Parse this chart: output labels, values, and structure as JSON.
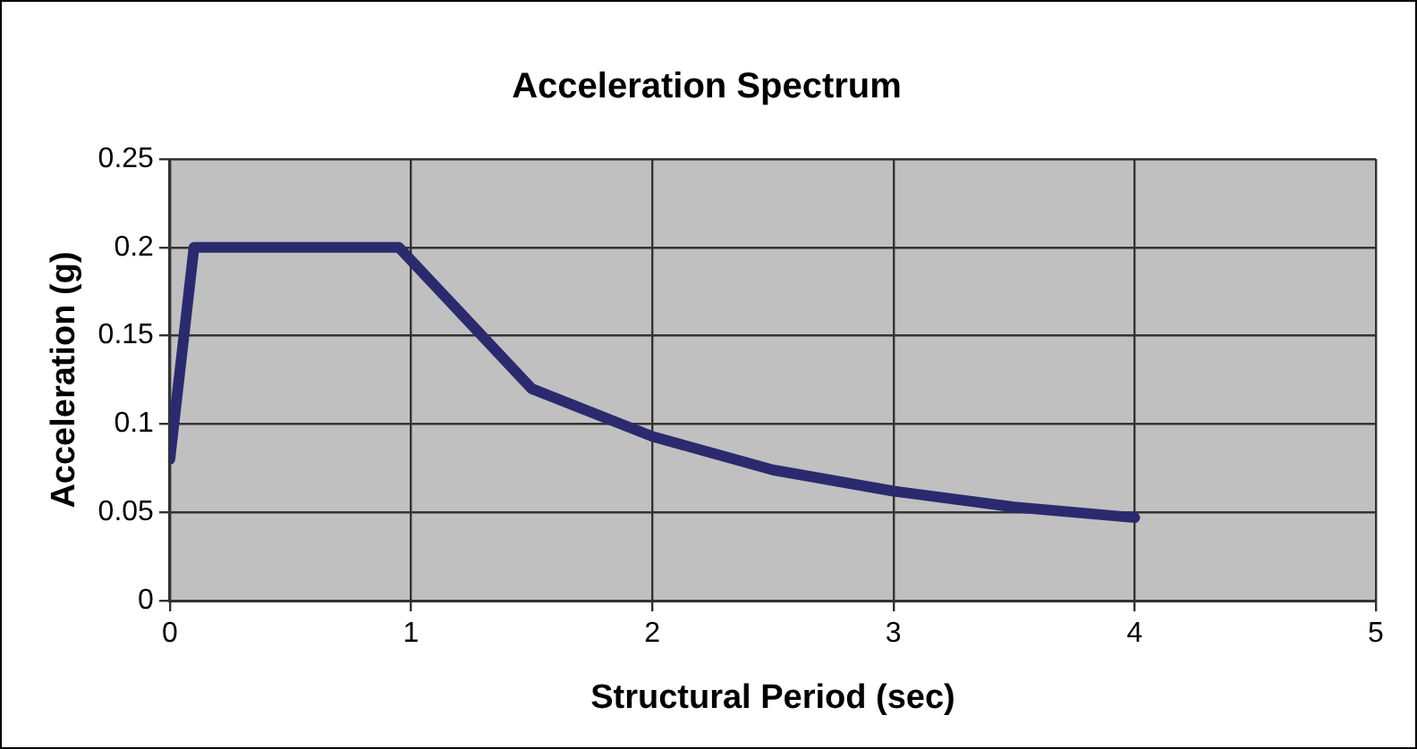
{
  "chart_data": {
    "type": "line",
    "title": "Acceleration Spectrum",
    "xlabel": "Structural Period (sec)",
    "ylabel": "Acceleration (g)",
    "x": [
      0,
      0.1,
      0.95,
      1.5,
      2,
      2.5,
      3,
      3.5,
      4
    ],
    "series": [
      {
        "color": "#2b2a6e",
        "values": [
          0.08,
          0.2,
          0.2,
          0.12,
          0.093,
          0.074,
          0.062,
          0.053,
          0.047
        ]
      }
    ],
    "xlim": [
      0,
      5
    ],
    "xticks": [
      0,
      1,
      2,
      3,
      4,
      5
    ],
    "ylim": [
      0,
      0.25
    ],
    "yticks": [
      0,
      0.05,
      0.1,
      0.15,
      0.2,
      0.25
    ],
    "grid": true,
    "legend": false,
    "marker": "none",
    "line_style": "solid"
  }
}
